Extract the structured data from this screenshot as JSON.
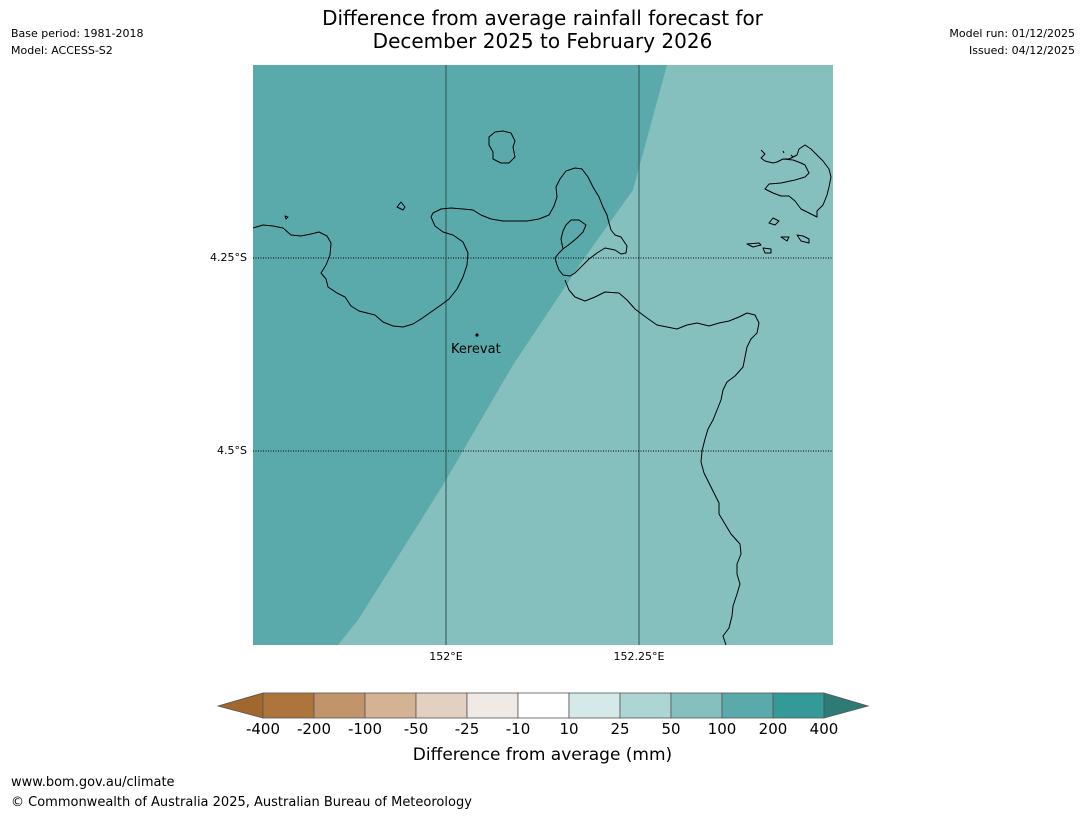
{
  "header": {
    "base_period": "Base period: 1981-2018",
    "model": "Model: ACCESS-S2",
    "model_run": "Model run: 01/12/2025",
    "issued": "Issued: 04/12/2025",
    "title_line1": "Difference from average rainfall forecast for",
    "title_line2": "December 2025 to February 2026"
  },
  "map": {
    "lat_labels": [
      "4.25°S",
      "4.5°S"
    ],
    "lon_labels": [
      "152°E",
      "152.25°E"
    ],
    "places": [
      {
        "name": "Kerevat"
      }
    ],
    "colors": {
      "zone_200": "#5baaab",
      "zone_100": "#85c0bf",
      "coast": "#000000"
    }
  },
  "colorbar": {
    "label": "Difference from average (mm)",
    "ticks": [
      "-400",
      "-200",
      "-100",
      "-50",
      "-25",
      "-10",
      "10",
      "25",
      "50",
      "100",
      "200",
      "400"
    ],
    "colors": [
      "#a0672e",
      "#ad753b",
      "#c2946a",
      "#d4b294",
      "#e3d0c0",
      "#efeae6",
      "#ffffff",
      "#d5e9e8",
      "#acd5d4",
      "#85c0bf",
      "#5baaab",
      "#339a98",
      "#2d7a77"
    ]
  },
  "footer": {
    "url": "www.bom.gov.au/climate",
    "copyright": "© Commonwealth of Australia 2025, Australian Bureau of Meteorology"
  }
}
